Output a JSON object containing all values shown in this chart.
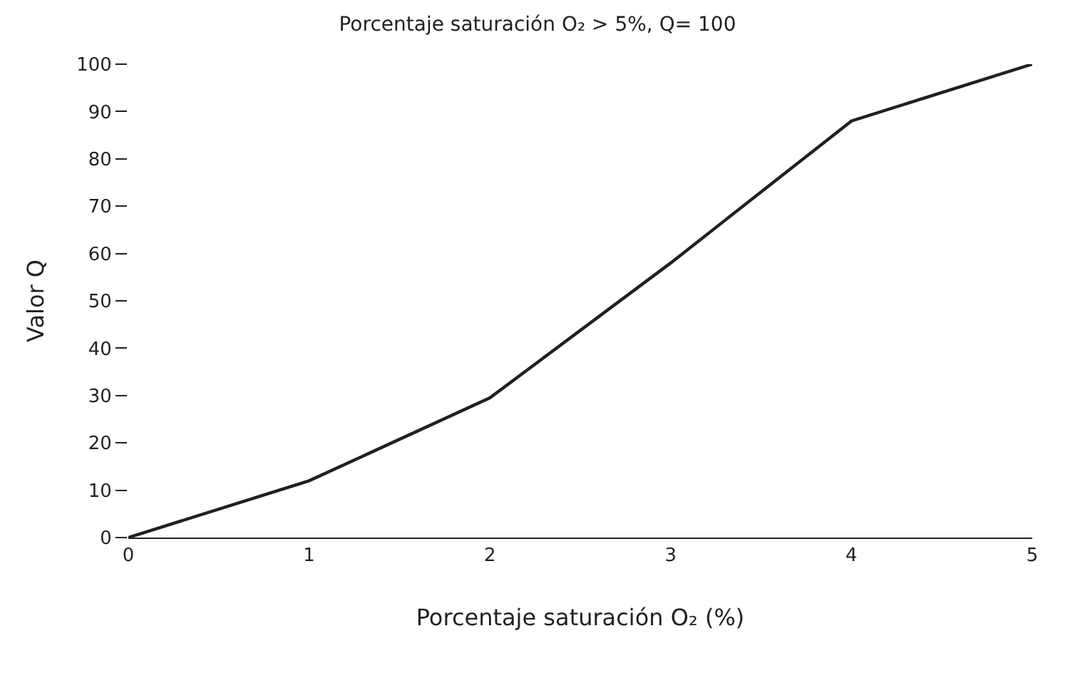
{
  "chart_data": {
    "type": "line",
    "title": "Porcentaje saturación O₂ > 5%, Q= 100",
    "xlabel": "Porcentaje saturación O₂ (%)",
    "ylabel": "Valor Q",
    "x": [
      0,
      1,
      2,
      3,
      4,
      5
    ],
    "series": [
      {
        "color": "#231f20",
        "values": [
          0,
          12,
          29.5,
          58,
          88,
          100
        ]
      }
    ],
    "xlim": [
      0,
      5
    ],
    "xticks": [
      0,
      1,
      2,
      3,
      4,
      5
    ],
    "ylim": [
      0,
      100
    ],
    "yticks": [
      0,
      10,
      20,
      30,
      40,
      50,
      60,
      70,
      80,
      90,
      100
    ],
    "grid": false,
    "marker": "none",
    "line_style": "solid"
  }
}
